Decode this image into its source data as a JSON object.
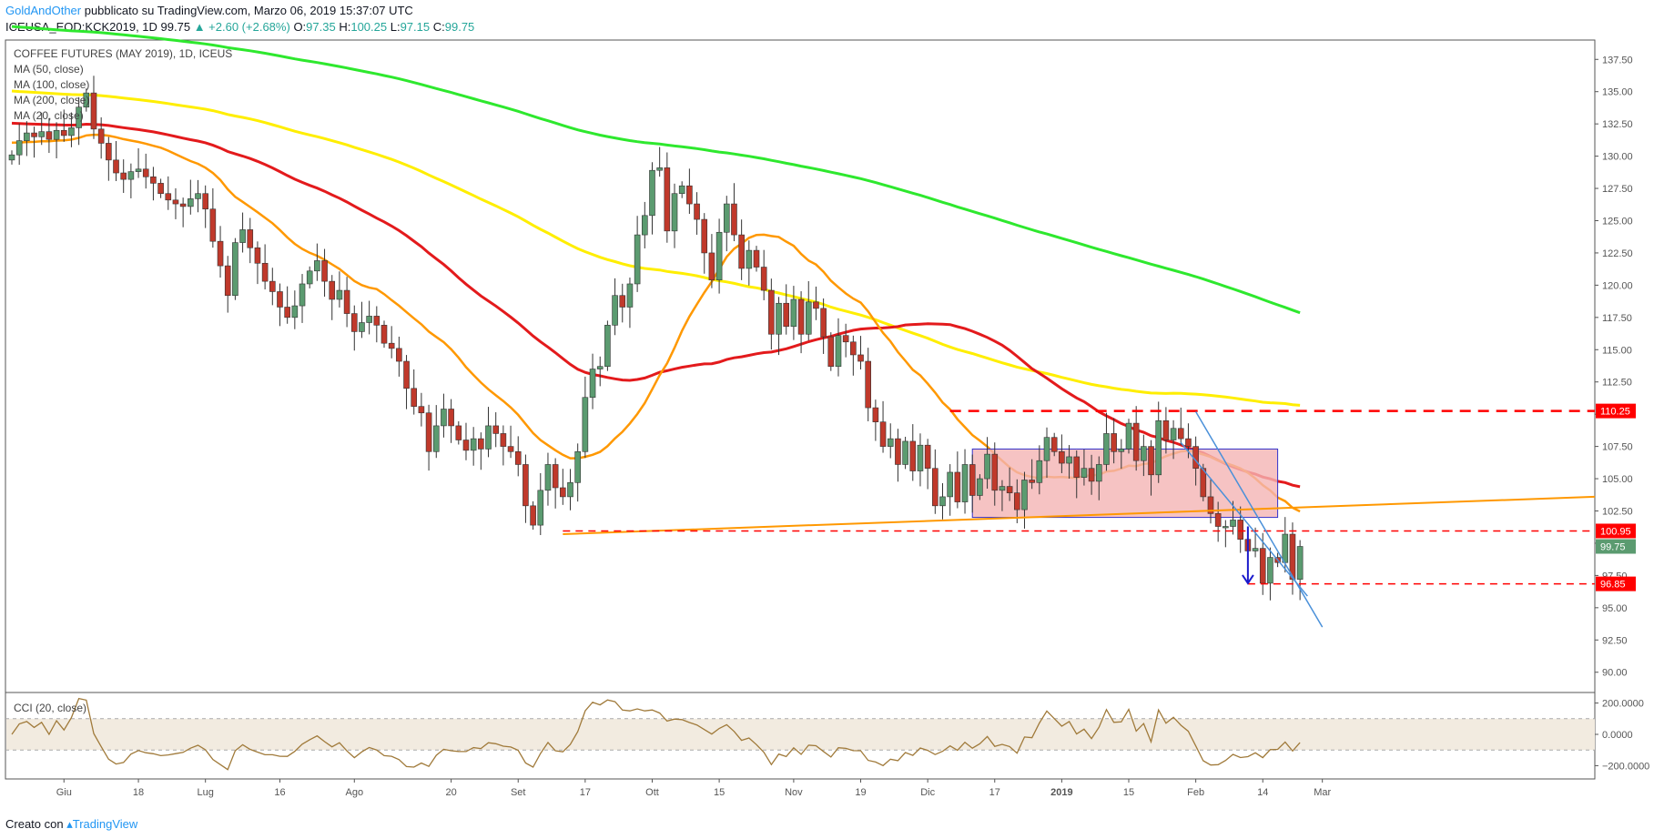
{
  "header": {
    "brand": "GoldAndOther",
    "published": " pubblicato su TradingView.com, Marzo 06, 2019 15:37:07 UTC",
    "symbol": "ICEUSA_EOD:KCK2019, 1D",
    "price": "99.75",
    "change": "▲ +2.60 (+2.68%)",
    "o_label": "O:",
    "o_val": "97.35",
    "h_label": "H:",
    "h_val": "100.25",
    "l_label": "L:",
    "l_val": "97.15",
    "c_label": "C:",
    "c_val": "99.75"
  },
  "legend": {
    "title": "COFFEE FUTURES (MAY 2019), 1D, ICEUS",
    "ma50": "MA (50, close)",
    "ma100": "MA (100, close)",
    "ma200": "MA (200, close)",
    "ma20": "MA (20, close)",
    "cci": "CCI (20, close)"
  },
  "footer": {
    "created": "Creato con ",
    "tv": "TradingView"
  },
  "colors": {
    "up": "#5b9b70",
    "down": "#c0392b",
    "ma20": "#ff9800",
    "ma50": "#e31a1c",
    "ma100": "#ffee00",
    "ma200": "#2ee82e",
    "level": "#ff0000",
    "trend": "#ff9800",
    "channel": "#4a90d9",
    "box_fill": "#f4b4b4",
    "box_stroke": "#3333cc",
    "arrow": "#1a1acc",
    "cci": "#a07a3a"
  },
  "chart_data": {
    "type": "candlestick",
    "x_ticks": [
      "Giu",
      "18",
      "Lug",
      "16",
      "Ago",
      "20",
      "Set",
      "17",
      "Ott",
      "15",
      "Nov",
      "19",
      "Dic",
      "17",
      "2019",
      "15",
      "Feb",
      "14",
      "Mar"
    ],
    "y_ticks": [
      "137.50",
      "135.00",
      "132.50",
      "130.00",
      "127.50",
      "125.00",
      "122.50",
      "120.00",
      "117.50",
      "115.00",
      "112.50",
      "110.00",
      "107.50",
      "105.00",
      "102.50",
      "100.00",
      "97.50",
      "95.00",
      "92.50",
      "90.00"
    ],
    "ylim": [
      88.5,
      139
    ],
    "price_tags": [
      {
        "label": "110.25",
        "value": 110.25,
        "color": "#ff0000"
      },
      {
        "label": "100.95",
        "value": 100.95,
        "color": "#ff0000"
      },
      {
        "label": "99.75",
        "value": 99.75,
        "color": "#5b9b70"
      },
      {
        "label": "96.85",
        "value": 96.85,
        "color": "#ff0000"
      }
    ],
    "cci_ticks": [
      "200.0000",
      "0.0000",
      "−200.0000"
    ],
    "closes": [
      130.1,
      131.2,
      131.8,
      131.5,
      131.9,
      131.3,
      132.0,
      131.6,
      132.2,
      133.8,
      134.9,
      132.1,
      131.0,
      129.7,
      128.7,
      128.2,
      128.8,
      129.0,
      128.4,
      127.9,
      127.1,
      126.6,
      126.3,
      126.1,
      126.7,
      127.1,
      125.9,
      123.4,
      121.5,
      119.2,
      123.3,
      124.3,
      122.9,
      121.7,
      120.3,
      119.5,
      118.3,
      117.5,
      118.4,
      120.1,
      121.1,
      121.9,
      120.3,
      118.9,
      119.6,
      117.8,
      116.4,
      117.1,
      117.6,
      116.9,
      115.5,
      115.1,
      114.1,
      112.0,
      110.6,
      110.1,
      107.1,
      109.1,
      110.4,
      109.1,
      108.0,
      107.2,
      108.1,
      107.3,
      109.1,
      108.5,
      107.5,
      107.1,
      106.1,
      102.9,
      101.4,
      104.1,
      106.1,
      104.3,
      103.6,
      104.7,
      107.1,
      111.3,
      113.5,
      113.7,
      116.9,
      119.2,
      118.3,
      120.1,
      123.9,
      125.4,
      128.9,
      129.1,
      124.2,
      127.1,
      127.7,
      126.3,
      125.1,
      122.5,
      120.4,
      124.1,
      126.3,
      123.9,
      121.3,
      122.7,
      121.4,
      119.6,
      116.2,
      118.6,
      116.8,
      118.9,
      116.2,
      118.7,
      118.2,
      116.0,
      113.7,
      116.1,
      115.6,
      114.6,
      114.1,
      110.5,
      109.4,
      107.5,
      108.1,
      106.1,
      107.9,
      105.6,
      107.6,
      105.8,
      102.9,
      103.6,
      105.5,
      103.2,
      106.1,
      103.7,
      105.0,
      106.9,
      104.1,
      104.4,
      103.9,
      102.6,
      104.9,
      104.7,
      106.4,
      108.2,
      107.1,
      106.2,
      106.7,
      105.1,
      105.8,
      104.8,
      106.1,
      108.5,
      107.1,
      107.3,
      109.3,
      106.4,
      107.5,
      105.3,
      109.5,
      108.0,
      108.9,
      108.1,
      107.5,
      105.8,
      103.6,
      102.3,
      101.3,
      101.3,
      101.8,
      100.3,
      99.4,
      99.6,
      96.9,
      98.9,
      98.5,
      100.7,
      97.2,
      99.75
    ]
  }
}
